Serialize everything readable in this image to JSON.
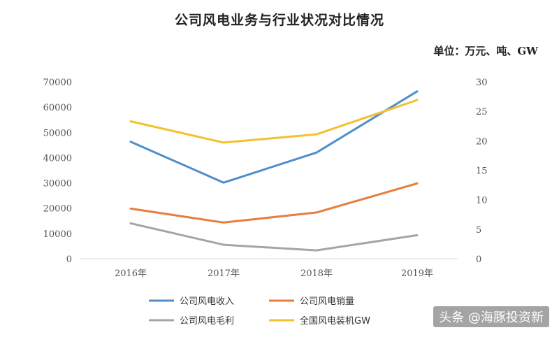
{
  "title": "公司风电业务与行业状况对比情况",
  "unit_label": "单位：万元、吨、GW",
  "watermark": "头条 @海豚投资新",
  "chart_data": {
    "type": "line",
    "categories": [
      "2016年",
      "2017年",
      "2018年",
      "2019年"
    ],
    "y_left": {
      "ylim": [
        0,
        70000
      ],
      "ticks": [
        "0",
        "10000",
        "20000",
        "30000",
        "40000",
        "50000",
        "60000",
        "70000"
      ]
    },
    "y_right": {
      "ylim": [
        0,
        30
      ],
      "ticks": [
        "0",
        "5",
        "10",
        "15",
        "20",
        "25",
        "30"
      ]
    },
    "series": [
      {
        "name": "公司风电收入",
        "axis": "left",
        "color": "#4f8fc9",
        "values": [
          46300,
          30100,
          42000,
          66200
        ]
      },
      {
        "name": "公司风电销量",
        "axis": "left",
        "color": "#e87d3e",
        "values": [
          19800,
          14300,
          18300,
          29800
        ]
      },
      {
        "name": "公司风电毛利",
        "axis": "left",
        "color": "#a5a5a5",
        "values": [
          14000,
          5500,
          3300,
          9300
        ]
      },
      {
        "name": "全国风电装机GW",
        "axis": "right",
        "color": "#f5c02c",
        "values": [
          23.3,
          19.7,
          21.1,
          26.9
        ]
      }
    ],
    "grid": false,
    "legend_position": "bottom"
  }
}
